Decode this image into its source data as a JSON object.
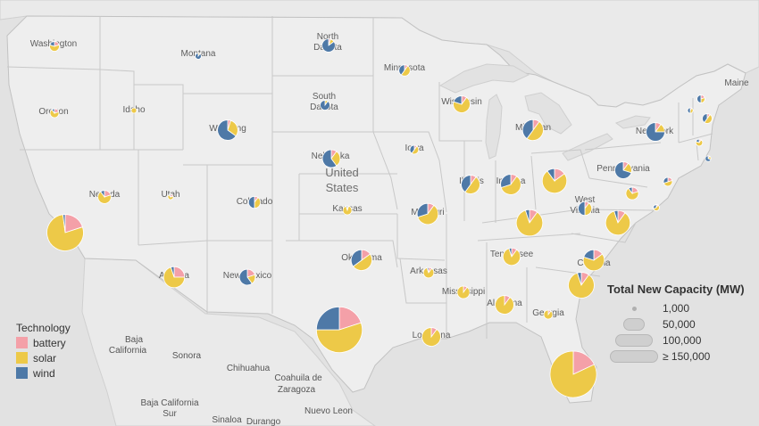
{
  "colors": {
    "battery": "#f4a0a8",
    "solar": "#edc948",
    "wind": "#4e79a7",
    "land": "#eeeeee",
    "water": "#e2e2e2",
    "border": "#c8c8c8"
  },
  "country_label": {
    "line1": "United",
    "line2": "States"
  },
  "state_labels": [
    "Washington",
    "Oregon",
    "Idaho",
    "Montana",
    "North Dakota",
    "South Dakota",
    "Wyoming",
    "Nevada",
    "Utah",
    "Colorado",
    "Nebraska",
    "Kansas",
    "Minnesota",
    "Iowa",
    "Wisconsin",
    "Michigan",
    "Illinois",
    "Indiana",
    "Ohio",
    "Missouri",
    "Oklahoma",
    "Arkansas",
    "Arizona",
    "New Mexico",
    "Tennessee",
    "Mississippi",
    "Alabama",
    "Georgia",
    "Louisiana",
    "Pennsylvania",
    "New York",
    "West Virginia",
    "Virginia",
    "Carolina",
    "Maine"
  ],
  "geo_labels": [
    "Baja California",
    "Sonora",
    "Chihuahua",
    "Coahuila de Zaragoza",
    "Baja California Sur",
    "Sinaloa",
    "Durango",
    "Nuevo Leon"
  ],
  "legend_technology": {
    "title": "Technology",
    "items": [
      {
        "label": "battery",
        "color": "#f4a0a8"
      },
      {
        "label": "solar",
        "color": "#edc948"
      },
      {
        "label": "wind",
        "color": "#4e79a7"
      }
    ]
  },
  "legend_size": {
    "title": "Total New Capacity (MW)",
    "items": [
      "1,000",
      "50,000",
      "100,000",
      "≥ 150,000"
    ]
  },
  "chart_data": {
    "type": "pie-map",
    "title": "",
    "series": [
      "battery",
      "solar",
      "wind"
    ],
    "size_measure": "Total New Capacity (MW)",
    "points": [
      {
        "state": "Washington",
        "total_mw": 3000,
        "battery": 0.2,
        "solar": 0.6,
        "wind": 0.2
      },
      {
        "state": "Oregon",
        "total_mw": 2500,
        "battery": 0.2,
        "solar": 0.7,
        "wind": 0.1
      },
      {
        "state": "Idaho",
        "total_mw": 300,
        "battery": 0.0,
        "solar": 1.0,
        "wind": 0.0
      },
      {
        "state": "Montana",
        "total_mw": 1200,
        "battery": 0.0,
        "solar": 0.1,
        "wind": 0.9
      },
      {
        "state": "North Dakota",
        "total_mw": 5500,
        "battery": 0.05,
        "solar": 0.1,
        "wind": 0.85
      },
      {
        "state": "South Dakota",
        "total_mw": 3000,
        "battery": 0.0,
        "solar": 0.1,
        "wind": 0.9
      },
      {
        "state": "Wyoming",
        "total_mw": 13000,
        "battery": 0.05,
        "solar": 0.3,
        "wind": 0.65
      },
      {
        "state": "California",
        "total_mw": 42000,
        "battery": 0.2,
        "solar": 0.78,
        "wind": 0.02
      },
      {
        "state": "Nevada",
        "total_mw": 5500,
        "battery": 0.2,
        "solar": 0.7,
        "wind": 0.1
      },
      {
        "state": "Utah",
        "total_mw": 700,
        "battery": 0.2,
        "solar": 0.7,
        "wind": 0.1
      },
      {
        "state": "Colorado",
        "total_mw": 4500,
        "battery": 0.1,
        "solar": 0.4,
        "wind": 0.5
      },
      {
        "state": "Nebraska",
        "total_mw": 10000,
        "battery": 0.1,
        "solar": 0.3,
        "wind": 0.6
      },
      {
        "state": "Kansas",
        "total_mw": 2500,
        "battery": 0.05,
        "solar": 0.9,
        "wind": 0.05
      },
      {
        "state": "Minnesota",
        "total_mw": 4000,
        "battery": 0.1,
        "solar": 0.5,
        "wind": 0.4
      },
      {
        "state": "Iowa",
        "total_mw": 2500,
        "battery": 0.1,
        "solar": 0.5,
        "wind": 0.4
      },
      {
        "state": "Wisconsin",
        "total_mw": 9000,
        "battery": 0.1,
        "solar": 0.7,
        "wind": 0.2
      },
      {
        "state": "Michigan",
        "total_mw": 14000,
        "battery": 0.1,
        "solar": 0.5,
        "wind": 0.4
      },
      {
        "state": "Illinois",
        "total_mw": 11000,
        "battery": 0.1,
        "solar": 0.5,
        "wind": 0.4
      },
      {
        "state": "Indiana",
        "total_mw": 13000,
        "battery": 0.1,
        "solar": 0.6,
        "wind": 0.3
      },
      {
        "state": "Ohio",
        "total_mw": 19000,
        "battery": 0.15,
        "solar": 0.75,
        "wind": 0.1
      },
      {
        "state": "Pennsylvania",
        "total_mw": 9000,
        "battery": 0.1,
        "solar": 0.2,
        "wind": 0.7
      },
      {
        "state": "New York",
        "total_mw": 11000,
        "battery": 0.1,
        "solar": 0.15,
        "wind": 0.75
      },
      {
        "state": "Vermont",
        "total_mw": 1000,
        "battery": 0.1,
        "solar": 0.4,
        "wind": 0.5
      },
      {
        "state": "New Hampshire",
        "total_mw": 2000,
        "battery": 0.2,
        "solar": 0.3,
        "wind": 0.5
      },
      {
        "state": "Massachusetts",
        "total_mw": 3000,
        "battery": 0.1,
        "solar": 0.5,
        "wind": 0.4
      },
      {
        "state": "Connecticut",
        "total_mw": 1500,
        "battery": 0.1,
        "solar": 0.7,
        "wind": 0.2
      },
      {
        "state": "Rhode Island",
        "total_mw": 1000,
        "battery": 0.1,
        "solar": 0.2,
        "wind": 0.7
      },
      {
        "state": "New Jersey",
        "total_mw": 2500,
        "battery": 0.2,
        "solar": 0.5,
        "wind": 0.3
      },
      {
        "state": "Maryland",
        "total_mw": 5000,
        "battery": 0.2,
        "solar": 0.7,
        "wind": 0.1
      },
      {
        "state": "Delaware",
        "total_mw": 1200,
        "battery": 0.1,
        "solar": 0.6,
        "wind": 0.3
      },
      {
        "state": "West Virginia",
        "total_mw": 6000,
        "battery": 0.1,
        "solar": 0.4,
        "wind": 0.5
      },
      {
        "state": "Virginia",
        "total_mw": 19000,
        "battery": 0.1,
        "solar": 0.85,
        "wind": 0.05
      },
      {
        "state": "Kentucky",
        "total_mw": 22000,
        "battery": 0.1,
        "solar": 0.85,
        "wind": 0.05
      },
      {
        "state": "Missouri",
        "total_mw": 14000,
        "battery": 0.1,
        "solar": 0.6,
        "wind": 0.3
      },
      {
        "state": "Oklahoma",
        "total_mw": 14000,
        "battery": 0.15,
        "solar": 0.5,
        "wind": 0.35
      },
      {
        "state": "Arkansas",
        "total_mw": 3500,
        "battery": 0.1,
        "solar": 0.85,
        "wind": 0.05
      },
      {
        "state": "Tennessee",
        "total_mw": 9500,
        "battery": 0.1,
        "solar": 0.85,
        "wind": 0.05
      },
      {
        "state": "North Carolina",
        "total_mw": 14000,
        "battery": 0.15,
        "solar": 0.65,
        "wind": 0.2
      },
      {
        "state": "South Carolina",
        "total_mw": 21000,
        "battery": 0.1,
        "solar": 0.85,
        "wind": 0.05
      },
      {
        "state": "Mississippi",
        "total_mw": 5000,
        "battery": 0.1,
        "solar": 0.9,
        "wind": 0.0
      },
      {
        "state": "Alabama",
        "total_mw": 11000,
        "battery": 0.1,
        "solar": 0.9,
        "wind": 0.0
      },
      {
        "state": "Georgia",
        "total_mw": 2500,
        "battery": 0.1,
        "solar": 0.9,
        "wind": 0.0
      },
      {
        "state": "Louisiana",
        "total_mw": 11000,
        "battery": 0.1,
        "solar": 0.9,
        "wind": 0.0
      },
      {
        "state": "Arizona",
        "total_mw": 14000,
        "battery": 0.25,
        "solar": 0.7,
        "wind": 0.05
      },
      {
        "state": "New Mexico",
        "total_mw": 8000,
        "battery": 0.2,
        "solar": 0.2,
        "wind": 0.6
      },
      {
        "state": "Texas",
        "total_mw": 66000,
        "battery": 0.2,
        "solar": 0.55,
        "wind": 0.25
      },
      {
        "state": "Florida",
        "total_mw": 68000,
        "battery": 0.18,
        "solar": 0.82,
        "wind": 0.0
      }
    ]
  }
}
